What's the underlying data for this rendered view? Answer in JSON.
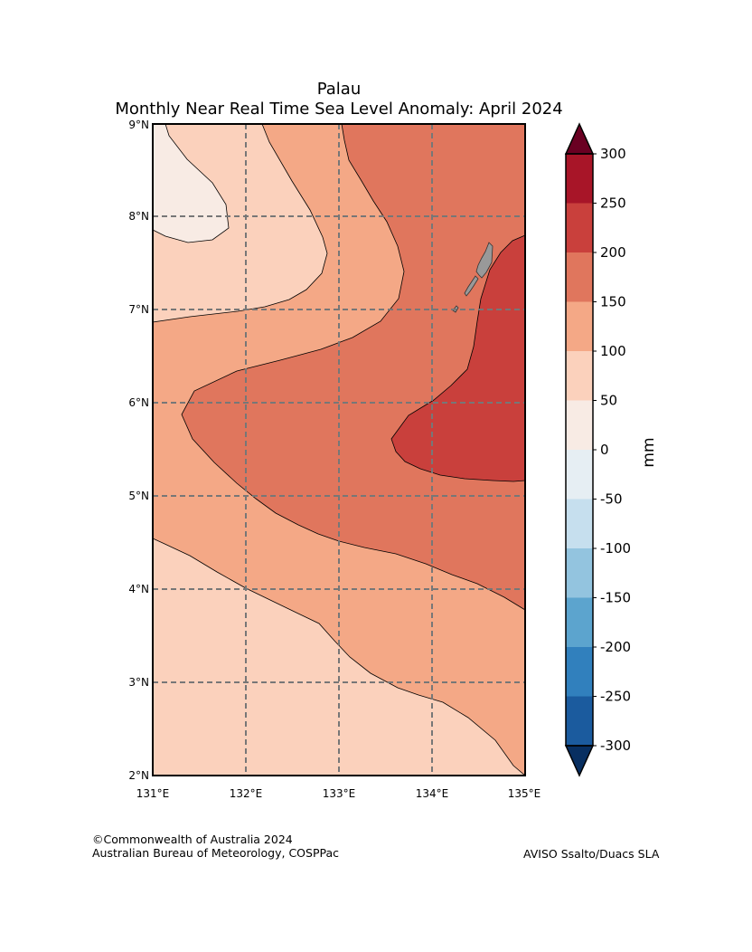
{
  "title": {
    "line1": "Palau",
    "line2": "Monthly Near Real Time Sea Level Anomaly: April 2024"
  },
  "map": {
    "region": "Palau",
    "lon_range": [
      131,
      135
    ],
    "lat_range": [
      2,
      9
    ],
    "lon_ticks": [
      "131°E",
      "132°E",
      "133°E",
      "134°E",
      "135°E"
    ],
    "lat_ticks": [
      "2°N",
      "3°N",
      "4°N",
      "5°N",
      "6°N",
      "7°N",
      "8°N",
      "9°N"
    ],
    "grid": "dashed",
    "land_color": "#999999",
    "contour_colors": {
      "0_50": "#f8ebe4",
      "50_100": "#fbd1bc",
      "100_150": "#f4a886",
      "150_200": "#e0765d",
      "200_250": "#c9403c"
    }
  },
  "colorbar": {
    "unit": "mm",
    "labels": [
      "300",
      "250",
      "200",
      "150",
      "100",
      "50",
      "0",
      "-50",
      "-100",
      "-150",
      "-200",
      "-250",
      "-300"
    ],
    "colors": [
      "#a81528",
      "#c9403c",
      "#e0765d",
      "#f4a886",
      "#fbd1bc",
      "#f8ebe4",
      "#e6eef3",
      "#c6dfee",
      "#93c4df",
      "#5ca4ce",
      "#3180bd",
      "#1b5b9e"
    ],
    "over_color": "#6a0022",
    "under_color": "#082f61"
  },
  "credits": {
    "left_line1": "©Commonwealth of Australia 2024",
    "left_line2": "Australian Bureau of Meteorology, COSPPac",
    "right": "AVISO Ssalto/Duacs SLA"
  }
}
